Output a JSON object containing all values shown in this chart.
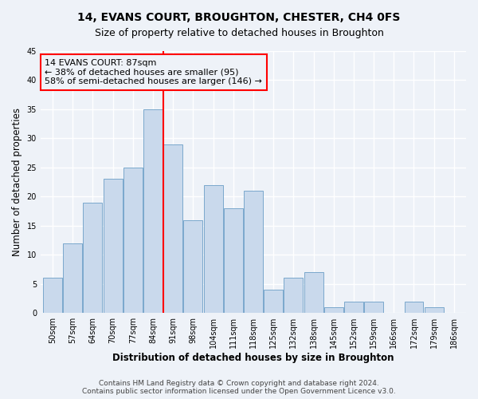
{
  "title": "14, EVANS COURT, BROUGHTON, CHESTER, CH4 0FS",
  "subtitle": "Size of property relative to detached houses in Broughton",
  "xlabel": "Distribution of detached houses by size in Broughton",
  "ylabel": "Number of detached properties",
  "categories": [
    "50sqm",
    "57sqm",
    "64sqm",
    "70sqm",
    "77sqm",
    "84sqm",
    "91sqm",
    "98sqm",
    "104sqm",
    "111sqm",
    "118sqm",
    "125sqm",
    "132sqm",
    "138sqm",
    "145sqm",
    "152sqm",
    "159sqm",
    "166sqm",
    "172sqm",
    "179sqm",
    "186sqm"
  ],
  "values": [
    6,
    12,
    19,
    23,
    25,
    35,
    29,
    16,
    22,
    18,
    21,
    4,
    6,
    7,
    1,
    2,
    2,
    0,
    2,
    1,
    0
  ],
  "bar_color": "#c9d9ec",
  "bar_edge_color": "#7aa8cc",
  "vline_x": 5.5,
  "vline_color": "red",
  "annotation_line1": "14 EVANS COURT: 87sqm",
  "annotation_line2": "← 38% of detached houses are smaller (95)",
  "annotation_line3": "58% of semi-detached houses are larger (146) →",
  "annotation_box_color": "red",
  "ylim": [
    0,
    45
  ],
  "yticks": [
    0,
    5,
    10,
    15,
    20,
    25,
    30,
    35,
    40,
    45
  ],
  "footer1": "Contains HM Land Registry data © Crown copyright and database right 2024.",
  "footer2": "Contains public sector information licensed under the Open Government Licence v3.0.",
  "bg_color": "#eef2f8",
  "grid_color": "white",
  "title_fontsize": 10,
  "subtitle_fontsize": 9,
  "label_fontsize": 8.5,
  "tick_fontsize": 7,
  "footer_fontsize": 6.5,
  "annotation_fontsize": 8
}
